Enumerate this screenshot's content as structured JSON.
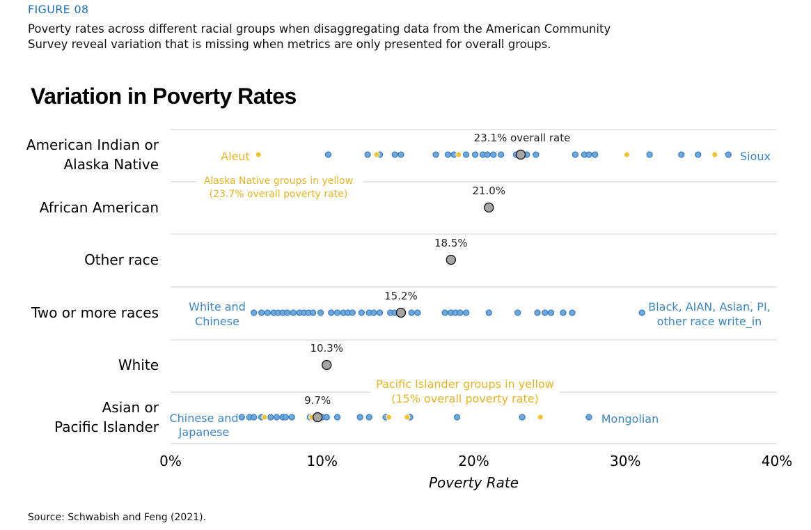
{
  "figure_label": "FIGURE 08",
  "description": "Poverty rates across different racial groups when disaggregating data from the American Community Survey reveal variation that is missing when metrics are only presented for overall groups.",
  "source": "Source: Schwabish and Feng (2021).",
  "colors": {
    "blue": "#6fa8dc",
    "blue_stroke": "#3d7fc0",
    "yellow": "#f1c232",
    "overall": "#a6a6a6",
    "label_blue": "#3c86c6",
    "label_yellow": "#e6b422"
  },
  "chart_data": {
    "type": "scatter",
    "title": "Variation in Poverty Rates",
    "xlabel": "Poverty Rate",
    "xlim": [
      0,
      40
    ],
    "xticks": [
      "0%",
      "10%",
      "20%",
      "30%",
      "40%"
    ],
    "xtick_values": [
      0,
      10,
      20,
      30,
      40
    ],
    "categories": [
      {
        "name": [
          "American Indian or",
          "Alaska Native"
        ],
        "overall": 23.1,
        "overall_label": "23.1% overall rate",
        "blue": [
          10.4,
          13.0,
          13.8,
          14.8,
          15.2,
          17.5,
          18.3,
          18.7,
          19.5,
          20.1,
          20.6,
          20.9,
          21.3,
          21.8,
          22.8,
          23.5,
          24.1,
          26.7,
          27.3,
          27.6,
          28.0,
          31.6,
          33.7,
          34.8,
          36.8
        ],
        "yellow": [
          5.8,
          13.6,
          19.0,
          30.1,
          35.9
        ],
        "annotations": {
          "left": [
            "Aleut"
          ],
          "right": [
            "Sioux"
          ],
          "note": [
            "Alaska Native groups in yellow",
            "(23.7% overall poverty rate)"
          ]
        }
      },
      {
        "name": [
          "African American"
        ],
        "overall": 21.0,
        "overall_label": "21.0%",
        "blue": [],
        "yellow": []
      },
      {
        "name": [
          "Other race"
        ],
        "overall": 18.5,
        "overall_label": "18.5%",
        "blue": [],
        "yellow": []
      },
      {
        "name": [
          "Two or more races"
        ],
        "overall": 15.2,
        "overall_label": "15.2%",
        "blue": [
          5.5,
          6.0,
          6.4,
          6.8,
          7.1,
          7.4,
          7.7,
          8.1,
          8.5,
          8.8,
          9.1,
          9.4,
          9.9,
          10.6,
          11.0,
          11.4,
          11.7,
          12.0,
          12.6,
          13.1,
          13.4,
          13.8,
          14.5,
          14.8,
          15.9,
          16.3,
          18.1,
          18.5,
          18.8,
          19.1,
          19.5,
          21.0,
          22.9,
          24.2,
          24.7,
          25.1,
          25.9,
          26.5,
          31.1
        ],
        "yellow": [],
        "annotations": {
          "left": [
            "White and",
            "Chinese"
          ],
          "right": [
            "Black, AIAN, Asian, PI,",
            "other race write_in"
          ]
        }
      },
      {
        "name": [
          "White"
        ],
        "overall": 10.3,
        "overall_label": "10.3%",
        "blue": [],
        "yellow": []
      },
      {
        "name": [
          "Asian or",
          "Pacific Islander"
        ],
        "overall": 9.7,
        "overall_label": "9.7%",
        "blue": [
          4.7,
          5.2,
          5.5,
          6.0,
          6.6,
          7.0,
          7.4,
          7.6,
          8.0,
          9.2,
          9.6,
          10.0,
          10.3,
          11.0,
          12.5,
          13.1,
          14.2,
          15.8,
          18.9,
          23.2,
          27.6
        ],
        "yellow": [
          6.2,
          9.3,
          14.4,
          15.6,
          24.4
        ],
        "annotations": {
          "left": [
            "Chinese and",
            "Japanese"
          ],
          "right": [
            "Mongolian"
          ],
          "note": [
            "Pacific Islander groups in yellow",
            "(15% overall poverty rate)"
          ]
        }
      }
    ]
  }
}
